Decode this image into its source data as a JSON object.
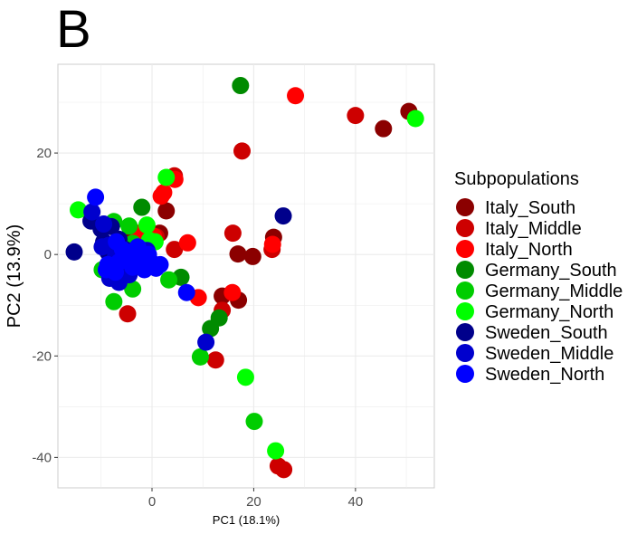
{
  "panel_label": "B",
  "chart_data": {
    "type": "scatter",
    "xlabel": "PC1 (18.1%)",
    "ylabel": "PC2 (13.9%)",
    "xlim": [
      -18.5,
      55.5
    ],
    "ylim": [
      -46,
      37.5
    ],
    "x_ticks": [
      0,
      20,
      40
    ],
    "y_ticks": [
      -40,
      -20,
      0,
      20
    ],
    "x_tick_labels": [
      "0",
      "20",
      "40"
    ],
    "y_tick_labels": [
      "-40",
      "-20",
      "0",
      "20"
    ],
    "grid": true,
    "legend": {
      "title": "Subpopulations",
      "position": "right"
    },
    "series": [
      {
        "name": "Italy_South",
        "color": "#8b0000",
        "points": [
          [
            50.5,
            28.2
          ],
          [
            45.5,
            24.8
          ],
          [
            23.9,
            3.4
          ],
          [
            19.8,
            -0.4
          ],
          [
            16.9,
            0.1
          ],
          [
            17.0,
            -9.0
          ],
          [
            13.8,
            -8.2
          ],
          [
            2.8,
            8.6
          ],
          [
            1.5,
            4.2
          ],
          [
            -5.3,
            3.0
          ]
        ]
      },
      {
        "name": "Italy_Middle",
        "color": "#cd0000",
        "points": [
          [
            40.0,
            27.4
          ],
          [
            17.7,
            20.4
          ],
          [
            15.9,
            4.2
          ],
          [
            23.6,
            1.0
          ],
          [
            13.8,
            -11.0
          ],
          [
            12.5,
            -20.8
          ],
          [
            24.8,
            -41.7
          ],
          [
            25.9,
            -42.4
          ],
          [
            -4.8,
            -11.7
          ],
          [
            4.4,
            15.5
          ],
          [
            4.4,
            1.0
          ],
          [
            0.8,
            3.5
          ]
        ]
      },
      {
        "name": "Italy_North",
        "color": "#ff0000",
        "points": [
          [
            28.2,
            31.3
          ],
          [
            4.5,
            14.8
          ],
          [
            2.3,
            12.2
          ],
          [
            1.8,
            11.5
          ],
          [
            7.0,
            2.3
          ],
          [
            9.1,
            -8.5
          ],
          [
            15.8,
            -7.5
          ],
          [
            23.7,
            2.0
          ],
          [
            -2.6,
            4.2
          ],
          [
            0.3,
            3.6
          ]
        ]
      },
      {
        "name": "Germany_South",
        "color": "#008b00",
        "points": [
          [
            17.4,
            33.3
          ],
          [
            5.7,
            -4.5
          ],
          [
            11.5,
            -14.6
          ],
          [
            13.2,
            -12.5
          ],
          [
            -2.0,
            9.3
          ]
        ]
      },
      {
        "name": "Germany_Middle",
        "color": "#00cd00",
        "points": [
          [
            -7.5,
            6.5
          ],
          [
            -4.5,
            5.6
          ],
          [
            -3.8,
            2.2
          ],
          [
            -3.8,
            -6.8
          ],
          [
            -7.5,
            -9.3
          ],
          [
            3.3,
            -5.0
          ],
          [
            9.5,
            -20.2
          ],
          [
            20.1,
            -32.9
          ],
          [
            -9.8,
            -3.0
          ],
          [
            -6.0,
            -5.0
          ]
        ]
      },
      {
        "name": "Germany_North",
        "color": "#00ff00",
        "points": [
          [
            51.8,
            26.8
          ],
          [
            2.8,
            15.2
          ],
          [
            -14.5,
            8.8
          ],
          [
            -1.0,
            5.8
          ],
          [
            -0.5,
            2.8
          ],
          [
            0.6,
            2.5
          ],
          [
            18.4,
            -24.2
          ],
          [
            24.3,
            -38.7
          ],
          [
            -6.5,
            1.8
          ]
        ]
      },
      {
        "name": "Sweden_South",
        "color": "#00008b",
        "points": [
          [
            -15.3,
            0.5
          ],
          [
            -12.0,
            6.6
          ],
          [
            -10.0,
            5.0
          ],
          [
            -9.5,
            2.5
          ],
          [
            -8.7,
            0.5
          ],
          [
            -7.8,
            -1.5
          ],
          [
            -6.5,
            3.0
          ],
          [
            -5.4,
            1.0
          ],
          [
            25.8,
            7.6
          ],
          [
            -8.0,
            5.5
          ]
        ]
      },
      {
        "name": "Sweden_Middle",
        "color": "#0000cd",
        "points": [
          [
            -11.8,
            8.4
          ],
          [
            -9.5,
            6.0
          ],
          [
            -8.5,
            1.8
          ],
          [
            -7.2,
            -0.5
          ],
          [
            -6.5,
            -5.5
          ],
          [
            -5.5,
            -3.5
          ],
          [
            -4.0,
            0.5
          ],
          [
            -3.0,
            1.0
          ],
          [
            -2.0,
            0.0
          ],
          [
            -1.0,
            0.8
          ],
          [
            -0.2,
            -1.5
          ],
          [
            0.5,
            -2.5
          ],
          [
            -8.3,
            -4.7
          ],
          [
            10.6,
            -17.3
          ],
          [
            -9.8,
            1.5
          ],
          [
            -4.5,
            -4.0
          ]
        ]
      },
      {
        "name": "Sweden_North",
        "color": "#0000ff",
        "points": [
          [
            -11.1,
            11.3
          ],
          [
            -7.0,
            2.5
          ],
          [
            -5.3,
            0.0
          ],
          [
            -3.8,
            -2.5
          ],
          [
            -2.8,
            1.5
          ],
          [
            -1.5,
            -3.0
          ],
          [
            -0.7,
            0.0
          ],
          [
            0.8,
            -2.7
          ],
          [
            1.6,
            -2.0
          ],
          [
            6.8,
            -7.5
          ],
          [
            -8.7,
            -2.0
          ],
          [
            -6.5,
            -1.5
          ],
          [
            -5.8,
            1.0
          ],
          [
            -4.3,
            0.2
          ],
          [
            -2.2,
            -1.0
          ],
          [
            -0.3,
            -1.8
          ],
          [
            -7.2,
            -3.5
          ],
          [
            -9.0,
            -3.0
          ]
        ]
      }
    ]
  }
}
